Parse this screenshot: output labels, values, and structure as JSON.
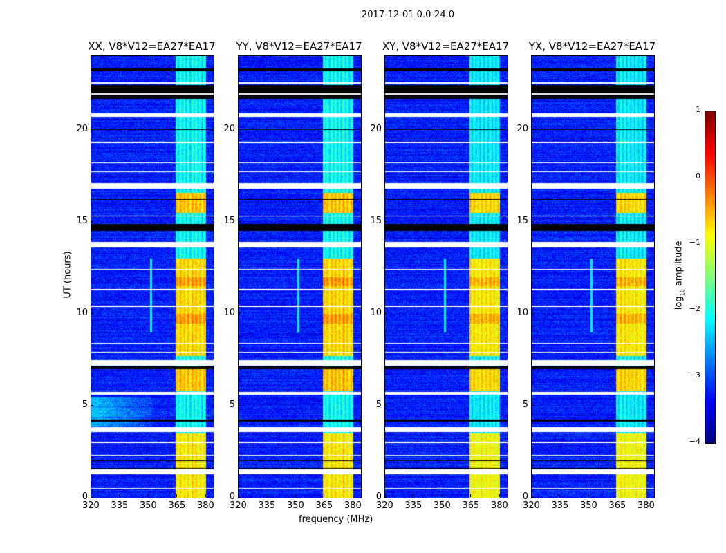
{
  "chart_data": {
    "type": "heatmap",
    "title": "2017-12-01 0.0-24.0",
    "xlabel": "frequency (MHz)",
    "ylabel": "UT (hours)",
    "xlim": [
      320,
      384
    ],
    "ylim": [
      0,
      24
    ],
    "xticks": [
      "320",
      "335",
      "350",
      "365",
      "380"
    ],
    "yticks": [
      "0",
      "5",
      "10",
      "15",
      "20"
    ],
    "panels": [
      {
        "title": "XX, V8*V12=EA27*EA17",
        "left_glow": true
      },
      {
        "title": "YY, V8*V12=EA27*EA17",
        "left_glow": false
      },
      {
        "title": "XY, V8*V12=EA27*EA17",
        "left_glow": false
      },
      {
        "title": "YX, V8*V12=EA27*EA17",
        "left_glow": false
      }
    ],
    "rfi_band_mhz": [
      364,
      380
    ],
    "bright_periods_hours": [
      [
        0.0,
        3.5,
        -0.6
      ],
      [
        5.8,
        7.0,
        -0.4
      ],
      [
        7.7,
        13.0,
        -0.5
      ],
      [
        15.5,
        16.6,
        -0.4
      ],
      [
        9.5,
        10.0,
        -0.2
      ],
      [
        11.5,
        12.0,
        -0.2
      ]
    ],
    "flagged_white_hours": [
      [
        20.7,
        20.9
      ],
      [
        16.8,
        17.1
      ],
      [
        13.6,
        13.9
      ],
      [
        7.2,
        7.5
      ],
      [
        5.6,
        5.75
      ],
      [
        3.6,
        3.85
      ],
      [
        1.3,
        1.55
      ],
      [
        22.5,
        22.6
      ],
      [
        21.9,
        22.0
      ],
      [
        18.2,
        18.25
      ],
      [
        17.7,
        17.75
      ],
      [
        12.4,
        12.45
      ],
      [
        11.3,
        11.35
      ],
      [
        10.4,
        10.45
      ],
      [
        8.4,
        8.45
      ],
      [
        7.9,
        7.95
      ],
      [
        3.0,
        3.05
      ],
      [
        2.3,
        2.35
      ],
      [
        0.5,
        0.55
      ],
      [
        19.3,
        19.35
      ],
      [
        15.3,
        15.35
      ]
    ],
    "flagged_black_hours": [
      [
        21.7,
        22.45
      ],
      [
        23.2,
        23.35
      ],
      [
        14.5,
        14.9
      ],
      [
        7.0,
        7.15
      ],
      [
        4.15,
        4.25
      ],
      [
        1.6,
        1.65
      ],
      [
        20.0,
        20.05
      ],
      [
        16.2,
        16.25
      ],
      [
        2.0,
        2.05
      ]
    ],
    "colorbar": {
      "label": "log10 amplitude",
      "label_base": "log",
      "label_sub": "10",
      "label_rest": " amplitude",
      "range": [
        -4,
        1
      ],
      "ticks": [
        "1",
        "0",
        "−1",
        "−2",
        "−3",
        "−4"
      ],
      "colormap": "jet"
    }
  }
}
